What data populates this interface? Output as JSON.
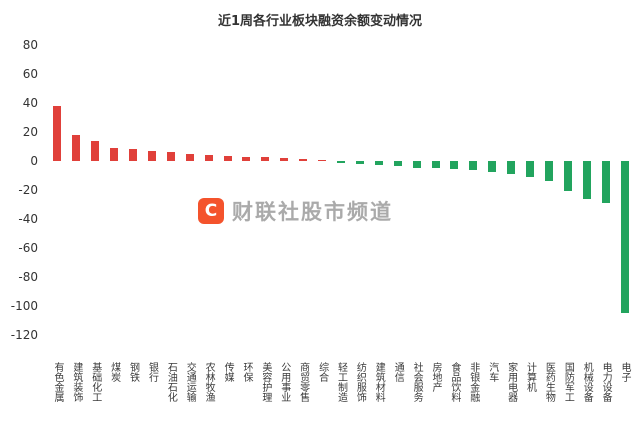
{
  "page_title": "近1周各行业板块融资余额变动情况",
  "watermark": {
    "logo_letter": "C",
    "text": "财联社股市频道"
  },
  "colors": {
    "title_text": "#333333",
    "axis_text": "#333333",
    "positive_bar": "#e0403a",
    "negative_bar": "#22a45e",
    "watermark_logo_bg": "#f4532c",
    "watermark_logo_letter": "#ffffff",
    "watermark_text": "#aaaaaa"
  },
  "y_axis": {
    "tick_labels": [
      80,
      60,
      40,
      20,
      0,
      -20,
      -40,
      -60,
      -80,
      -100,
      -120
    ]
  },
  "chart_data": {
    "type": "bar",
    "title": "近1周各行业板块融资余额变动情况",
    "categories": [
      "有色金属",
      "建筑装饰",
      "基础化工",
      "煤炭",
      "钢铁",
      "银行",
      "石油石化",
      "交通运输",
      "农林牧渔",
      "传媒",
      "环保",
      "美容护理",
      "公用事业",
      "商贸零售",
      "综合",
      "轻工制造",
      "纺织服饰",
      "建筑材料",
      "通信",
      "社会服务",
      "房地产",
      "食品饮料",
      "非银金融",
      "汽车",
      "家用电器",
      "计算机",
      "医药生物",
      "国防军工",
      "机械设备",
      "电力设备",
      "电子"
    ],
    "values": [
      38,
      18,
      14,
      9,
      8,
      7,
      6,
      5,
      4,
      3.5,
      3,
      2.5,
      2,
      1.5,
      1,
      -1.5,
      -2,
      -3,
      -3.5,
      -4.5,
      -5,
      -5.5,
      -6.5,
      -7.5,
      -9,
      -11,
      -14,
      -21,
      -26,
      -29,
      -105
    ],
    "xlabel": "",
    "ylabel": "",
    "ylim": [
      -120,
      80
    ],
    "ytick_step": 20,
    "grid": false,
    "legend": false,
    "bar_colors": {
      "positive": "#e0403a",
      "negative": "#22a45e"
    }
  }
}
